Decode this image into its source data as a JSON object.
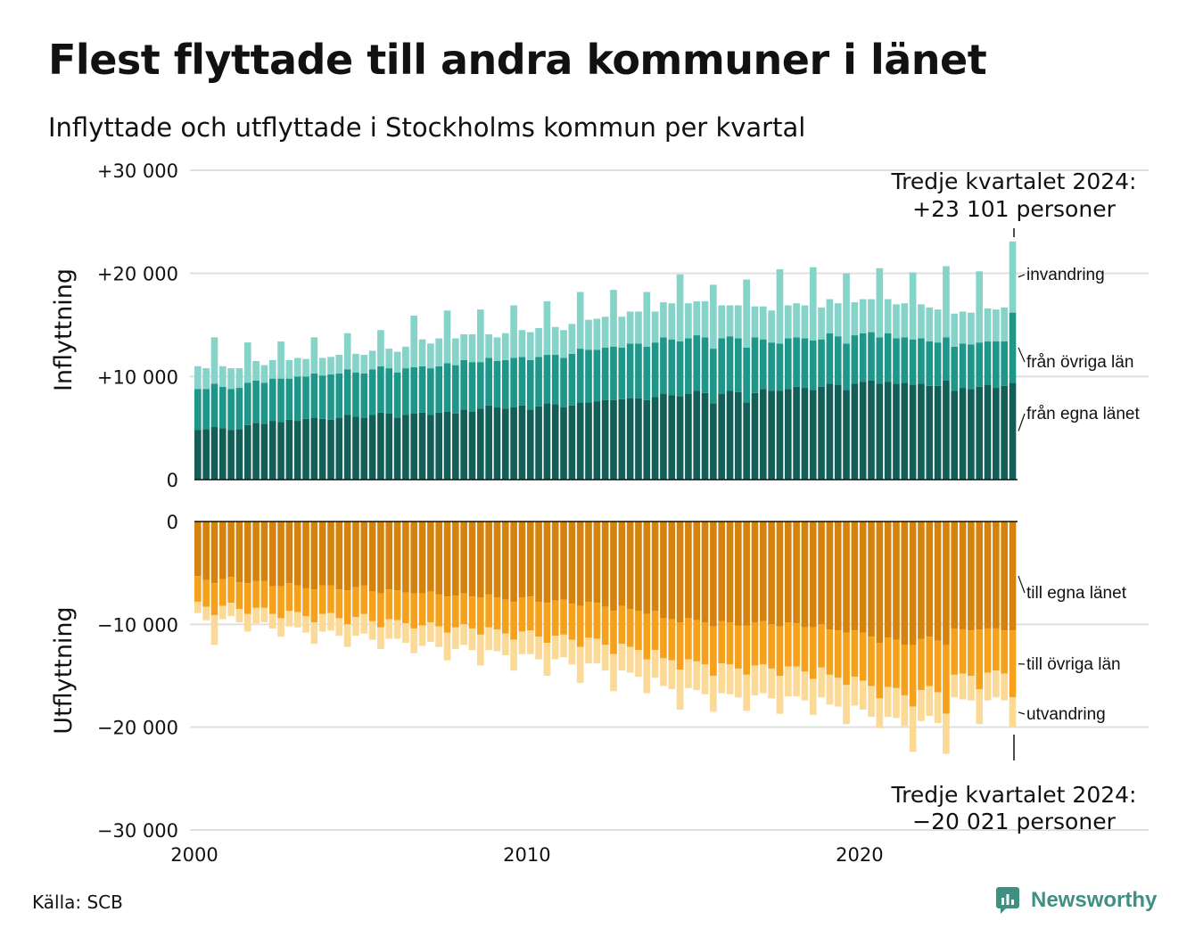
{
  "title": "Flest flyttade till andra kommuner i länet",
  "subtitle": "Inflyttade och utflyttade i Stockholms kommun per kvartal",
  "source": "Källa: SCB",
  "brand": "Newsworthy",
  "colors": {
    "in_egna": "#135f58",
    "in_ovriga": "#1e978a",
    "in_invandring": "#85d3c9",
    "ut_egna": "#d4840e",
    "ut_ovriga": "#f5a11c",
    "ut_utvandring": "#fbd996",
    "brand": "#3f8f82",
    "grid": "#e0e0e0"
  },
  "annotations": {
    "top_line1": "Tredje kvartalet 2024:",
    "top_line2": "+23 101 personer",
    "bottom_line1": "Tredje kvartalet 2024:",
    "bottom_line2": "−20 021 personer"
  },
  "chart_data": [
    {
      "type": "bar",
      "stacked": true,
      "ylabel": "Inflyttning",
      "ylim": [
        0,
        30000
      ],
      "yticks": [
        "0",
        "+10 000",
        "+20 000",
        "+30 000"
      ],
      "xticks": [
        "2000",
        "2010",
        "2020"
      ],
      "x_start": "2000 K1",
      "x_end": "2024 K3",
      "series": [
        {
          "name": "från egna länet",
          "values": [
            4800,
            4900,
            5100,
            5000,
            4800,
            4900,
            5300,
            5500,
            5400,
            5700,
            5600,
            5800,
            5700,
            5900,
            6000,
            5900,
            5800,
            6000,
            6300,
            6100,
            6000,
            6300,
            6500,
            6400,
            6000,
            6300,
            6400,
            6500,
            6300,
            6500,
            6600,
            6400,
            6800,
            6600,
            6900,
            7200,
            7000,
            6900,
            7000,
            7200,
            6800,
            7100,
            7400,
            7300,
            7000,
            7200,
            7500,
            7500,
            7600,
            7700,
            7700,
            7800,
            7900,
            7900,
            7700,
            8000,
            8300,
            8200,
            8100,
            8300,
            8600,
            8400,
            7400,
            8300,
            8600,
            8500,
            7500,
            8400,
            8800,
            8600,
            8600,
            8800,
            9000,
            8900,
            8700,
            9000,
            9300,
            9200,
            8700,
            9300,
            9500,
            9600,
            9300,
            9500,
            9300,
            9400,
            9200,
            9300,
            9100,
            9100,
            9600,
            8600,
            8900,
            8800,
            9000,
            9200,
            8900,
            9100,
            9400
          ]
        },
        {
          "name": "från övriga län",
          "values": [
            4000,
            3900,
            4200,
            4000,
            4000,
            4000,
            4100,
            4100,
            4000,
            4100,
            4200,
            4000,
            4300,
            4100,
            4300,
            4200,
            4400,
            4300,
            4400,
            4300,
            4300,
            4400,
            4500,
            4400,
            4400,
            4500,
            4500,
            4500,
            4500,
            4500,
            4700,
            4700,
            4800,
            4800,
            4500,
            4600,
            4500,
            4700,
            4800,
            4700,
            4800,
            4800,
            4700,
            4800,
            4800,
            5000,
            5200,
            5100,
            5000,
            5100,
            5200,
            5000,
            5300,
            5300,
            5200,
            5300,
            5500,
            5400,
            5300,
            5400,
            5400,
            5400,
            5300,
            5400,
            5300,
            5200,
            5300,
            5400,
            4800,
            4700,
            4600,
            4900,
            4800,
            4800,
            4800,
            4600,
            4900,
            4700,
            4500,
            4700,
            4700,
            4700,
            4500,
            4700,
            4400,
            4400,
            4400,
            4400,
            4300,
            4200,
            4200,
            4300,
            4300,
            4300,
            4300,
            4200,
            4500,
            4300,
            6800
          ]
        },
        {
          "name": "invandring",
          "values": [
            2200,
            2000,
            4500,
            2000,
            2000,
            1900,
            3900,
            1900,
            1700,
            1800,
            3600,
            1800,
            1800,
            1700,
            3500,
            1700,
            1700,
            1800,
            3500,
            1800,
            1800,
            1800,
            3500,
            1900,
            2000,
            2100,
            5000,
            2600,
            2400,
            2700,
            5100,
            2600,
            2500,
            2700,
            5100,
            2300,
            2300,
            2600,
            5100,
            2600,
            2700,
            2800,
            5200,
            2700,
            2700,
            2900,
            5500,
            2900,
            3000,
            3000,
            5500,
            3000,
            3100,
            3100,
            5300,
            3000,
            3400,
            3500,
            6500,
            3400,
            3300,
            3500,
            6200,
            3200,
            3000,
            3200,
            6600,
            3000,
            3200,
            3100,
            7200,
            3200,
            3300,
            3200,
            7100,
            3100,
            3300,
            3200,
            6800,
            3200,
            3300,
            3200,
            6700,
            3300,
            3300,
            3300,
            6500,
            3300,
            3300,
            3200,
            6900,
            3200,
            3100,
            3100,
            6900,
            3200,
            3100,
            3300,
            6900
          ]
        }
      ]
    },
    {
      "type": "bar",
      "stacked": true,
      "ylabel": "Utflyttning",
      "ylim": [
        -30000,
        0
      ],
      "yticks": [
        "0",
        "−10 000",
        "−20 000",
        "−30 000"
      ],
      "xticks": [
        "2000",
        "2010",
        "2020"
      ],
      "x_start": "2000 K1",
      "x_end": "2024 K3",
      "series": [
        {
          "name": "till egna länet",
          "values": [
            -5300,
            -5700,
            -6000,
            -5600,
            -5400,
            -5900,
            -6000,
            -5800,
            -5800,
            -6300,
            -6300,
            -6000,
            -6200,
            -6500,
            -6600,
            -6200,
            -6200,
            -6600,
            -6700,
            -6400,
            -6200,
            -6800,
            -7000,
            -6600,
            -6700,
            -6900,
            -7000,
            -7000,
            -6800,
            -7100,
            -7300,
            -7200,
            -7000,
            -7300,
            -7400,
            -7100,
            -7400,
            -7600,
            -7800,
            -7400,
            -7300,
            -7800,
            -7900,
            -7700,
            -7600,
            -8000,
            -8200,
            -7800,
            -7900,
            -8300,
            -8700,
            -8200,
            -8500,
            -8700,
            -9000,
            -8700,
            -9400,
            -9500,
            -9800,
            -9400,
            -9600,
            -9800,
            -10200,
            -9700,
            -9800,
            -10100,
            -10100,
            -9800,
            -9700,
            -10000,
            -10200,
            -9800,
            -9900,
            -10300,
            -10300,
            -10000,
            -10500,
            -10600,
            -10800,
            -10600,
            -10800,
            -11200,
            -11800,
            -11300,
            -11500,
            -12000,
            -12000,
            -11400,
            -11200,
            -11600,
            -12000,
            -10400,
            -10500,
            -10600,
            -10500,
            -10400,
            -10400,
            -10600,
            -10600
          ]
        },
        {
          "name": "till övriga län",
          "values": [
            -2500,
            -2600,
            -3100,
            -2600,
            -2500,
            -2600,
            -3000,
            -2600,
            -2600,
            -2700,
            -3100,
            -2700,
            -2600,
            -2700,
            -3200,
            -2800,
            -2700,
            -2800,
            -3300,
            -2900,
            -2800,
            -2900,
            -3300,
            -2900,
            -2900,
            -3000,
            -3400,
            -3100,
            -3000,
            -3100,
            -3500,
            -3100,
            -3000,
            -3100,
            -3600,
            -3200,
            -3100,
            -3300,
            -3700,
            -3300,
            -3300,
            -3400,
            -3900,
            -3400,
            -3400,
            -3500,
            -4000,
            -3500,
            -3500,
            -3700,
            -4200,
            -3700,
            -3700,
            -3800,
            -4400,
            -3800,
            -3900,
            -4000,
            -4600,
            -4000,
            -4000,
            -4100,
            -4800,
            -4100,
            -4100,
            -4200,
            -4800,
            -4200,
            -4200,
            -4300,
            -4800,
            -4300,
            -4200,
            -4300,
            -5000,
            -4200,
            -4400,
            -4600,
            -5100,
            -4500,
            -4700,
            -4800,
            -5400,
            -4800,
            -4700,
            -4900,
            -6000,
            -5000,
            -4800,
            -5000,
            -6700,
            -4500,
            -4300,
            -4400,
            -5800,
            -4300,
            -4100,
            -4200,
            -6500
          ]
        },
        {
          "name": "utvandring",
          "values": [
            -1100,
            -1300,
            -2900,
            -1300,
            -1300,
            -1300,
            -1700,
            -1500,
            -1400,
            -1400,
            -1800,
            -1500,
            -1500,
            -1600,
            -2100,
            -1700,
            -1700,
            -1700,
            -2200,
            -1800,
            -1900,
            -1800,
            -2100,
            -1900,
            -1800,
            -1900,
            -2400,
            -2000,
            -1900,
            -2000,
            -2700,
            -2100,
            -2000,
            -2100,
            -3000,
            -2200,
            -2100,
            -2100,
            -3000,
            -2200,
            -2300,
            -2200,
            -3200,
            -2300,
            -2200,
            -2400,
            -3500,
            -2500,
            -2400,
            -2500,
            -3600,
            -2600,
            -2500,
            -2600,
            -3300,
            -2700,
            -2700,
            -2800,
            -3900,
            -2800,
            -2800,
            -2900,
            -3500,
            -2900,
            -2900,
            -2800,
            -3500,
            -2900,
            -2800,
            -2900,
            -3700,
            -2900,
            -2900,
            -2800,
            -3500,
            -2900,
            -2900,
            -2800,
            -3800,
            -2800,
            -2800,
            -3000,
            -2900,
            -2900,
            -2900,
            -3000,
            -4400,
            -3000,
            -2900,
            -3000,
            -3900,
            -2200,
            -2500,
            -2400,
            -3400,
            -2700,
            -2600,
            -2600,
            -2900
          ]
        }
      ]
    }
  ]
}
